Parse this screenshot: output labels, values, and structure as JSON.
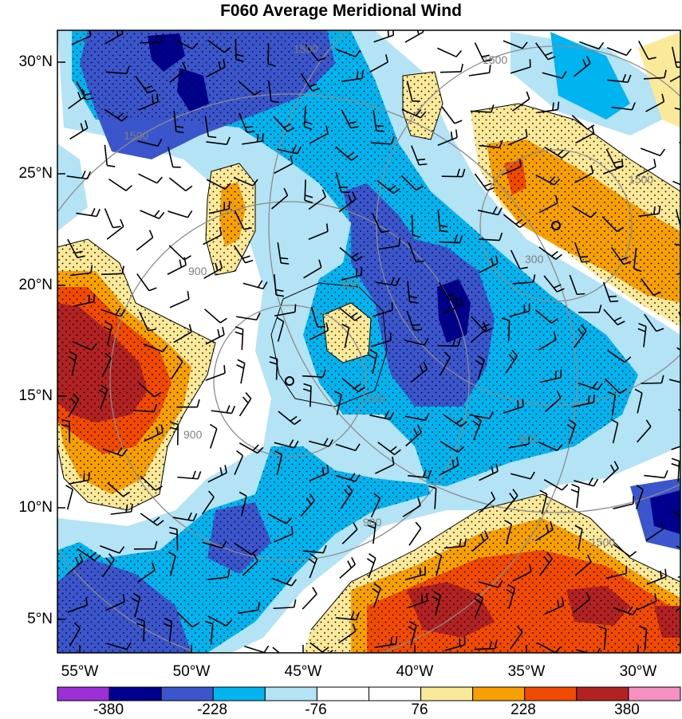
{
  "title": "F060 Average Meridional Wind",
  "latitude_labels": [
    "30°N",
    "25°N",
    "20°N",
    "15°N",
    "10°N",
    "5°N"
  ],
  "longitude_labels": [
    "55°W",
    "50°W",
    "45°W",
    "40°W",
    "35°W",
    "30°W"
  ],
  "range_ring_labels": [
    "1500",
    "1500",
    "1500",
    "1500",
    "900",
    "900",
    "900",
    "900",
    "900",
    "300",
    "300",
    "1500"
  ],
  "colorbar": {
    "labels": [
      "-380",
      "-228",
      "-76",
      "76",
      "228",
      "380"
    ],
    "colors": [
      "#9b30d6",
      "#00008f",
      "#3b55cc",
      "#00b4f0",
      "#b3e3f5",
      "#ffffff",
      "#ffffff",
      "#fbe99a",
      "#f7a000",
      "#f24a00",
      "#b22222",
      "#f590c0"
    ]
  },
  "fill_colors": {
    "deep_blue": "#00008f",
    "blue": "#3b55cc",
    "cyan": "#00b4f0",
    "light_blue": "#b3e3f5",
    "yellow": "#fbe99a",
    "orange": "#f7a000",
    "red_orange": "#f24a00",
    "dark_red": "#b22222"
  }
}
